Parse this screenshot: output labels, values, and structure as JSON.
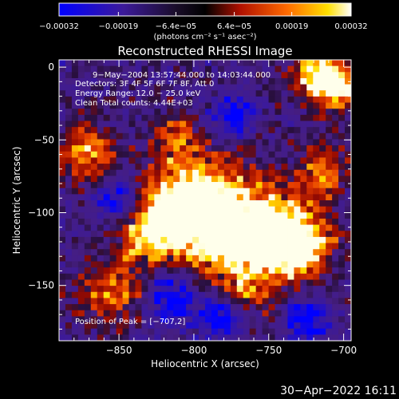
{
  "chart_data": {
    "type": "heatmap",
    "title": "Reconstructed RHESSI Image",
    "xlabel": "Heliocentric X (arcsec)",
    "ylabel": "Heliocentric Y (arcsec)",
    "xlim": [
      -890,
      -695
    ],
    "ylim": [
      -188,
      5
    ],
    "x_ticks": [
      -850,
      -800,
      -750,
      -700
    ],
    "x_tick_labels": [
      "−850",
      "−800",
      "−750",
      "−700"
    ],
    "y_ticks": [
      0,
      -50,
      -100,
      -150
    ],
    "y_tick_labels": [
      "0",
      "−50",
      "−100",
      "−150"
    ],
    "colorbar": {
      "min": -0.00032,
      "max": 0.00032,
      "tick_values": [
        -0.00032,
        -0.00019,
        -6.4e-05,
        6.4e-05,
        0.00019,
        0.00032
      ],
      "tick_labels": [
        "−0.00032",
        "−0.00019",
        "−6.4e−05",
        "6.4e−05",
        "0.00019",
        "0.00032"
      ],
      "units": "(photons cm⁻² s⁻¹ asec⁻²)"
    },
    "annotations": [
      "9−May−2004 13:57:44.000 to 14:03:44.000",
      "Detectors: 3F 4F 5F 6F 7F 8F, Att 0",
      "Energy Range: 12.0 − 25.0 keV",
      "Clean     Total counts: 4.44E+03"
    ],
    "peak_label": "Position of Peak = [−707,2]",
    "peak": {
      "x": -707,
      "y": 2
    },
    "colors": {
      "negative": "#2030ff",
      "zero": "#3a1a70",
      "positive": "#ffd000",
      "max": "#ffffff"
    }
  },
  "footer": {
    "timestamp": "30−Apr−2022 16:11"
  }
}
